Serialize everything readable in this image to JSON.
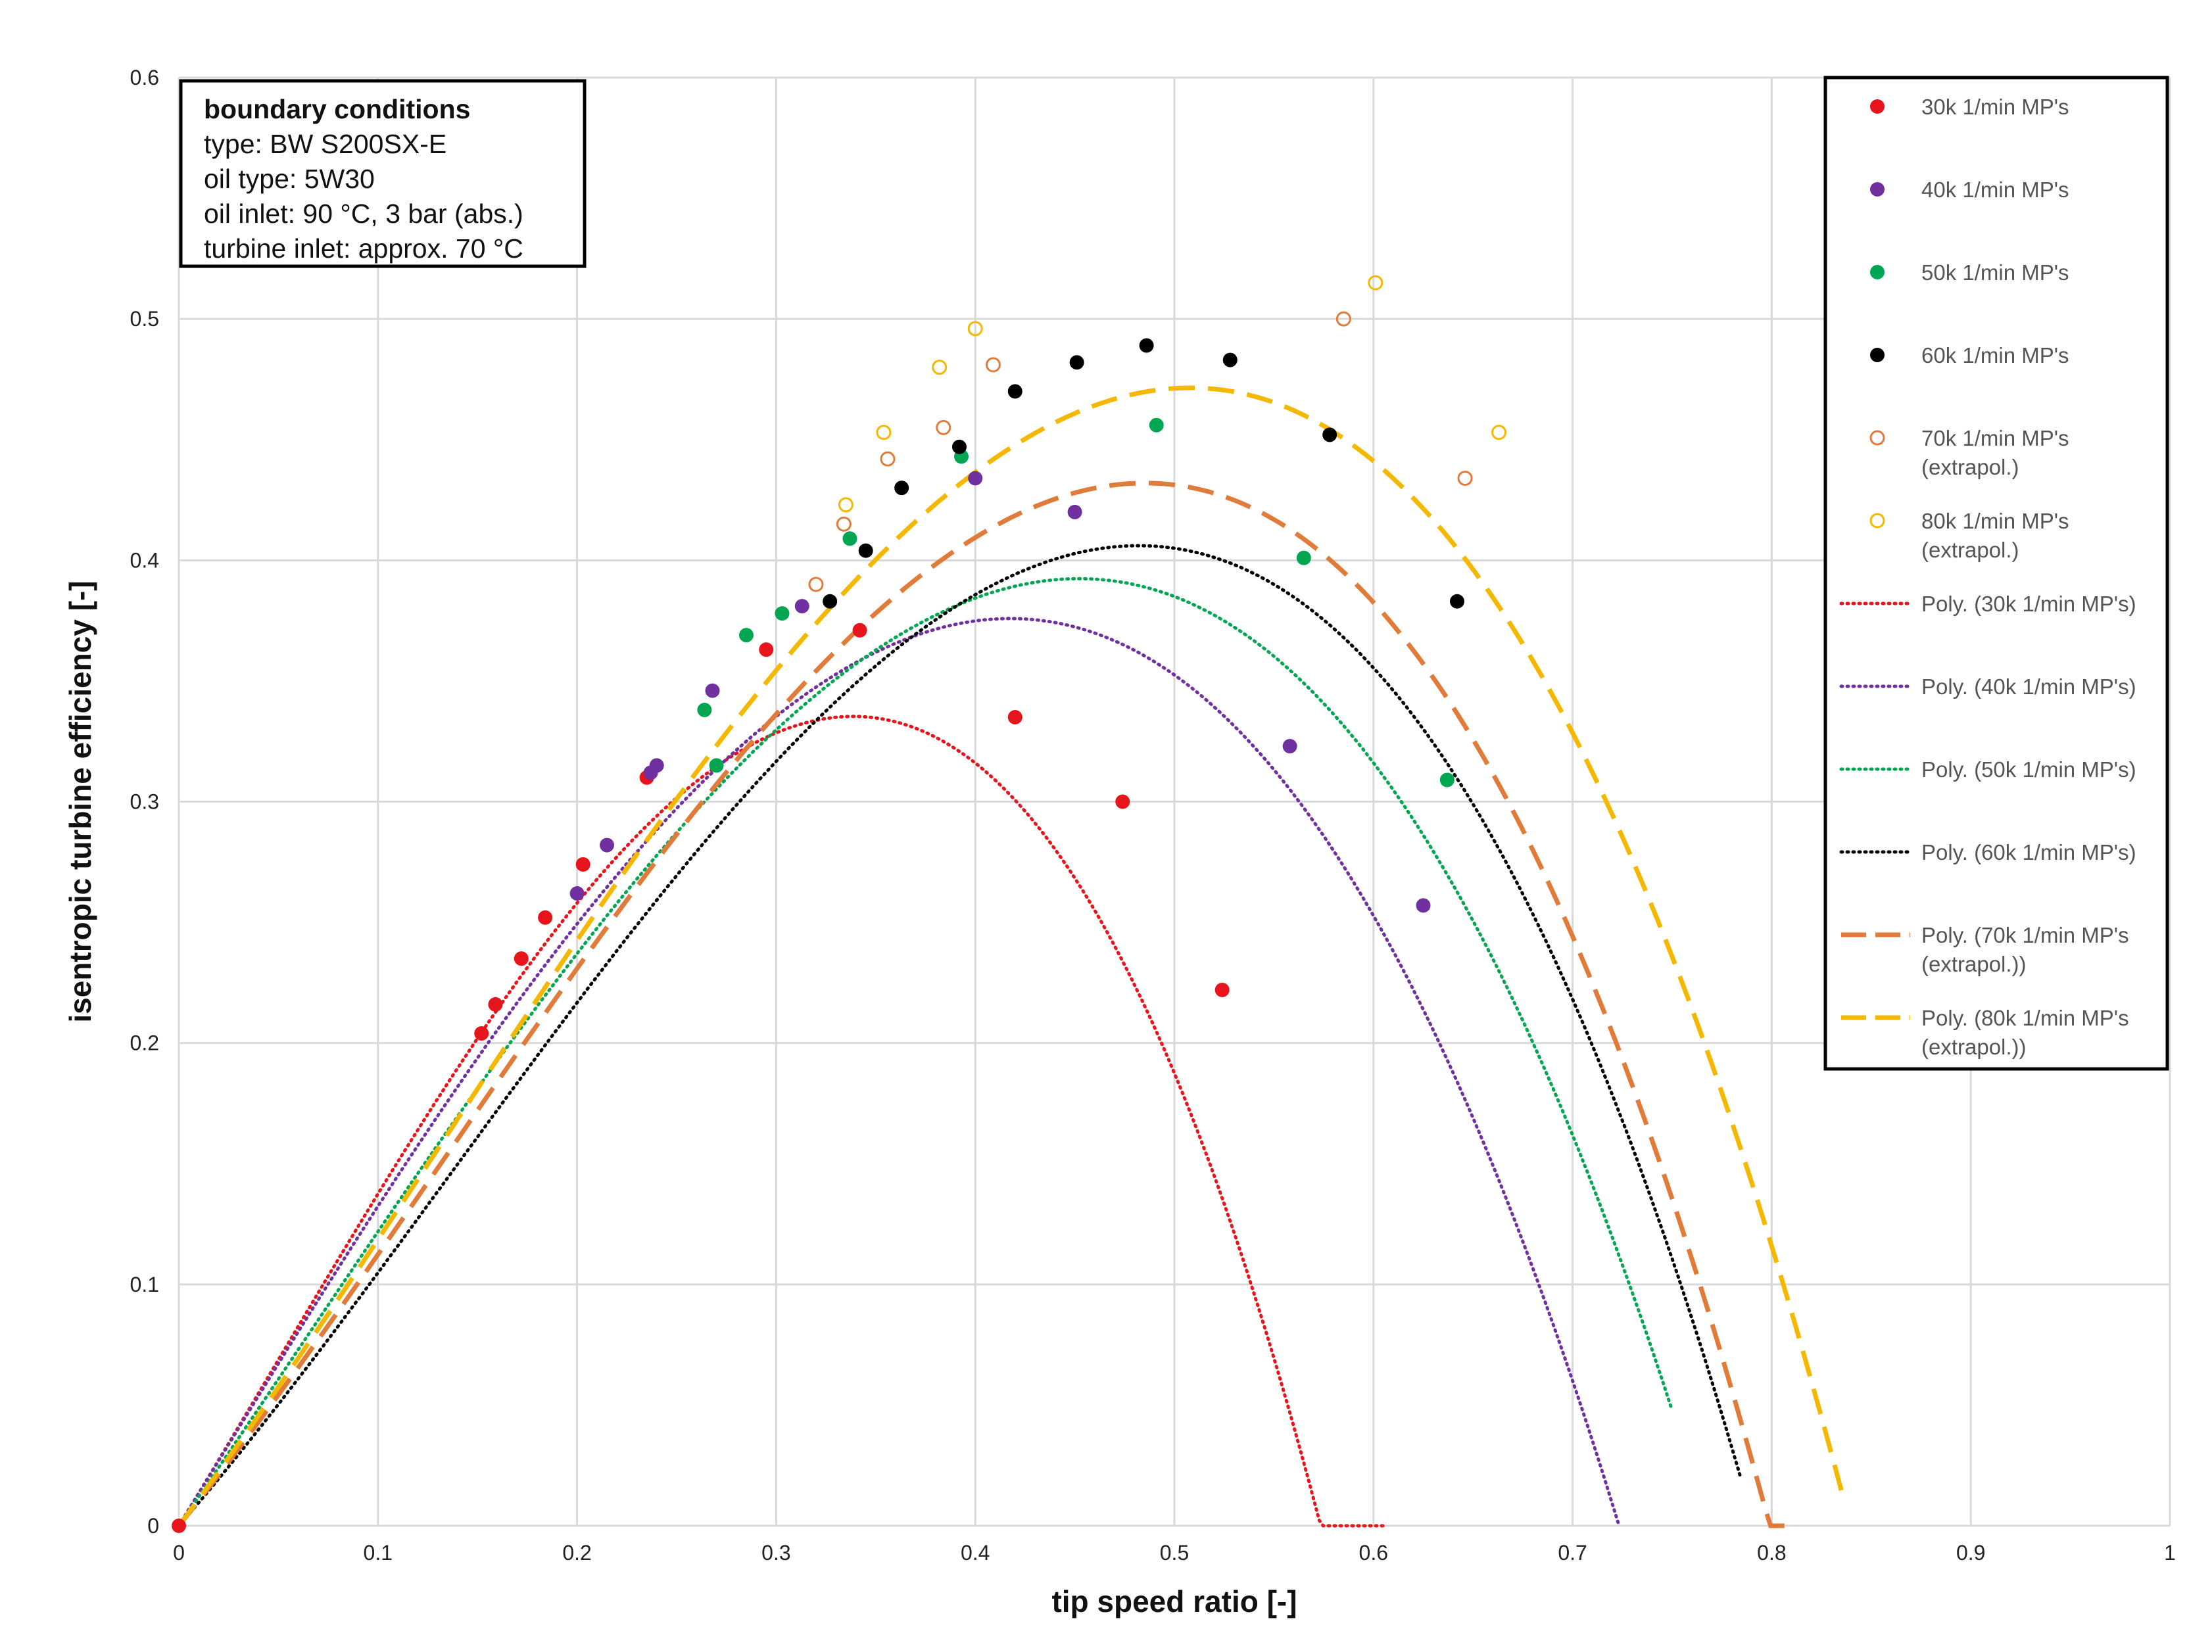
{
  "chart_data": {
    "type": "scatter",
    "title": "",
    "xlabel": "tip speed ratio [-]",
    "ylabel": "isentropic turbine efficiency [-]",
    "xlim": [
      0,
      1
    ],
    "ylim": [
      0,
      0.6
    ],
    "grid": true,
    "x_ticks": [
      "0",
      "0.1",
      "0.2",
      "0.3",
      "0.4",
      "0.5",
      "0.6",
      "0.7",
      "0.8",
      "0.9",
      "1"
    ],
    "y_ticks": [
      "0",
      "0.1",
      "0.2",
      "0.3",
      "0.4",
      "0.5",
      "0.6"
    ],
    "boundary_conditions": {
      "title": "boundary conditions",
      "lines": [
        "type: BW S200SX-E",
        "oil type: 5W30",
        "oil inlet: 90 °C, 3 bar (abs.)",
        "turbine inlet: approx. 70 °C"
      ]
    },
    "legend_position": "top-right",
    "series": [
      {
        "name": "30k 1/min MP's",
        "kind": "points",
        "marker": "filled",
        "color": "#e8141c",
        "points": [
          [
            0,
            0
          ],
          [
            0.152,
            0.204
          ],
          [
            0.159,
            0.216
          ],
          [
            0.172,
            0.235
          ],
          [
            0.184,
            0.252
          ],
          [
            0.203,
            0.274
          ],
          [
            0.235,
            0.31
          ],
          [
            0.295,
            0.363
          ],
          [
            0.342,
            0.371
          ],
          [
            0.42,
            0.335
          ],
          [
            0.474,
            0.3
          ],
          [
            0.524,
            0.222
          ]
        ]
      },
      {
        "name": "40k 1/min MP's",
        "kind": "points",
        "marker": "filled",
        "color": "#7030a0",
        "points": [
          [
            0.2,
            0.262
          ],
          [
            0.215,
            0.282
          ],
          [
            0.237,
            0.312
          ],
          [
            0.24,
            0.315
          ],
          [
            0.268,
            0.346
          ],
          [
            0.313,
            0.381
          ],
          [
            0.4,
            0.434
          ],
          [
            0.45,
            0.42
          ],
          [
            0.558,
            0.323
          ],
          [
            0.625,
            0.257
          ]
        ]
      },
      {
        "name": "50k 1/min MP's",
        "kind": "points",
        "marker": "filled",
        "color": "#00a651",
        "points": [
          [
            0.264,
            0.338
          ],
          [
            0.27,
            0.315
          ],
          [
            0.285,
            0.369
          ],
          [
            0.303,
            0.378
          ],
          [
            0.337,
            0.409
          ],
          [
            0.393,
            0.443
          ],
          [
            0.491,
            0.456
          ],
          [
            0.565,
            0.401
          ],
          [
            0.637,
            0.309
          ]
        ]
      },
      {
        "name": "60k 1/min MP's",
        "kind": "points",
        "marker": "filled",
        "color": "#000000",
        "points": [
          [
            0.327,
            0.383
          ],
          [
            0.345,
            0.404
          ],
          [
            0.363,
            0.43
          ],
          [
            0.392,
            0.447
          ],
          [
            0.42,
            0.47
          ],
          [
            0.451,
            0.482
          ],
          [
            0.486,
            0.489
          ],
          [
            0.528,
            0.483
          ],
          [
            0.578,
            0.452
          ],
          [
            0.642,
            0.383
          ]
        ]
      },
      {
        "name": "70k 1/min MP's",
        "name2": "(extrapol.)",
        "kind": "points",
        "marker": "open",
        "color": "#e07b39",
        "points": [
          [
            0.32,
            0.39
          ],
          [
            0.334,
            0.415
          ],
          [
            0.356,
            0.442
          ],
          [
            0.384,
            0.455
          ],
          [
            0.409,
            0.481
          ],
          [
            0.585,
            0.5
          ],
          [
            0.646,
            0.434
          ]
        ]
      },
      {
        "name": "80k 1/min MP's",
        "name2": "(extrapol.)",
        "kind": "points",
        "marker": "open",
        "color": "#f5b800",
        "points": [
          [
            0.335,
            0.423
          ],
          [
            0.354,
            0.453
          ],
          [
            0.382,
            0.48
          ],
          [
            0.4,
            0.496
          ],
          [
            0.601,
            0.515
          ],
          [
            0.663,
            0.453
          ]
        ]
      },
      {
        "name": "Poly. (30k 1/min MP's)",
        "kind": "poly",
        "style": "dotted",
        "color": "#e8141c",
        "coeffs": [
          0,
          1.35,
          0.8,
          -5.5
        ],
        "x_range": [
          0,
          0.605
        ]
      },
      {
        "name": "Poly. (40k 1/min MP's)",
        "kind": "poly",
        "style": "dotted",
        "color": "#7030a0",
        "coeffs": [
          0,
          1.35,
          0,
          -2.58
        ],
        "x_range": [
          0,
          0.723
        ]
      },
      {
        "name": "Poly. (50k 1/min MP's)",
        "kind": "poly",
        "style": "dotted",
        "color": "#00a651",
        "coeffs": [
          0,
          1.2,
          0.45,
          -2.62
        ],
        "x_range": [
          0,
          0.75
        ]
      },
      {
        "name": "Poly. (60k 1/min MP's)",
        "kind": "poly",
        "style": "dotted",
        "color": "#000000",
        "coeffs": [
          0,
          0.95,
          1.3,
          -3.16
        ],
        "x_range": [
          0,
          0.784
        ]
      },
      {
        "name": "Poly. (70k 1/min MP's",
        "name2": "(extrapol.))",
        "kind": "poly",
        "style": "dashed",
        "color": "#e07b39",
        "coeffs": [
          0,
          1.03,
          1.26,
          -3.19
        ],
        "x_range": [
          0,
          0.813
        ]
      },
      {
        "name": "Poly. (80k 1/min MP's",
        "name2": "(extrapol.))",
        "kind": "poly",
        "style": "dashed",
        "color": "#f5b800",
        "coeffs": [
          0,
          1.1,
          1.15,
          -2.93
        ],
        "x_range": [
          0,
          0.835
        ]
      }
    ]
  }
}
